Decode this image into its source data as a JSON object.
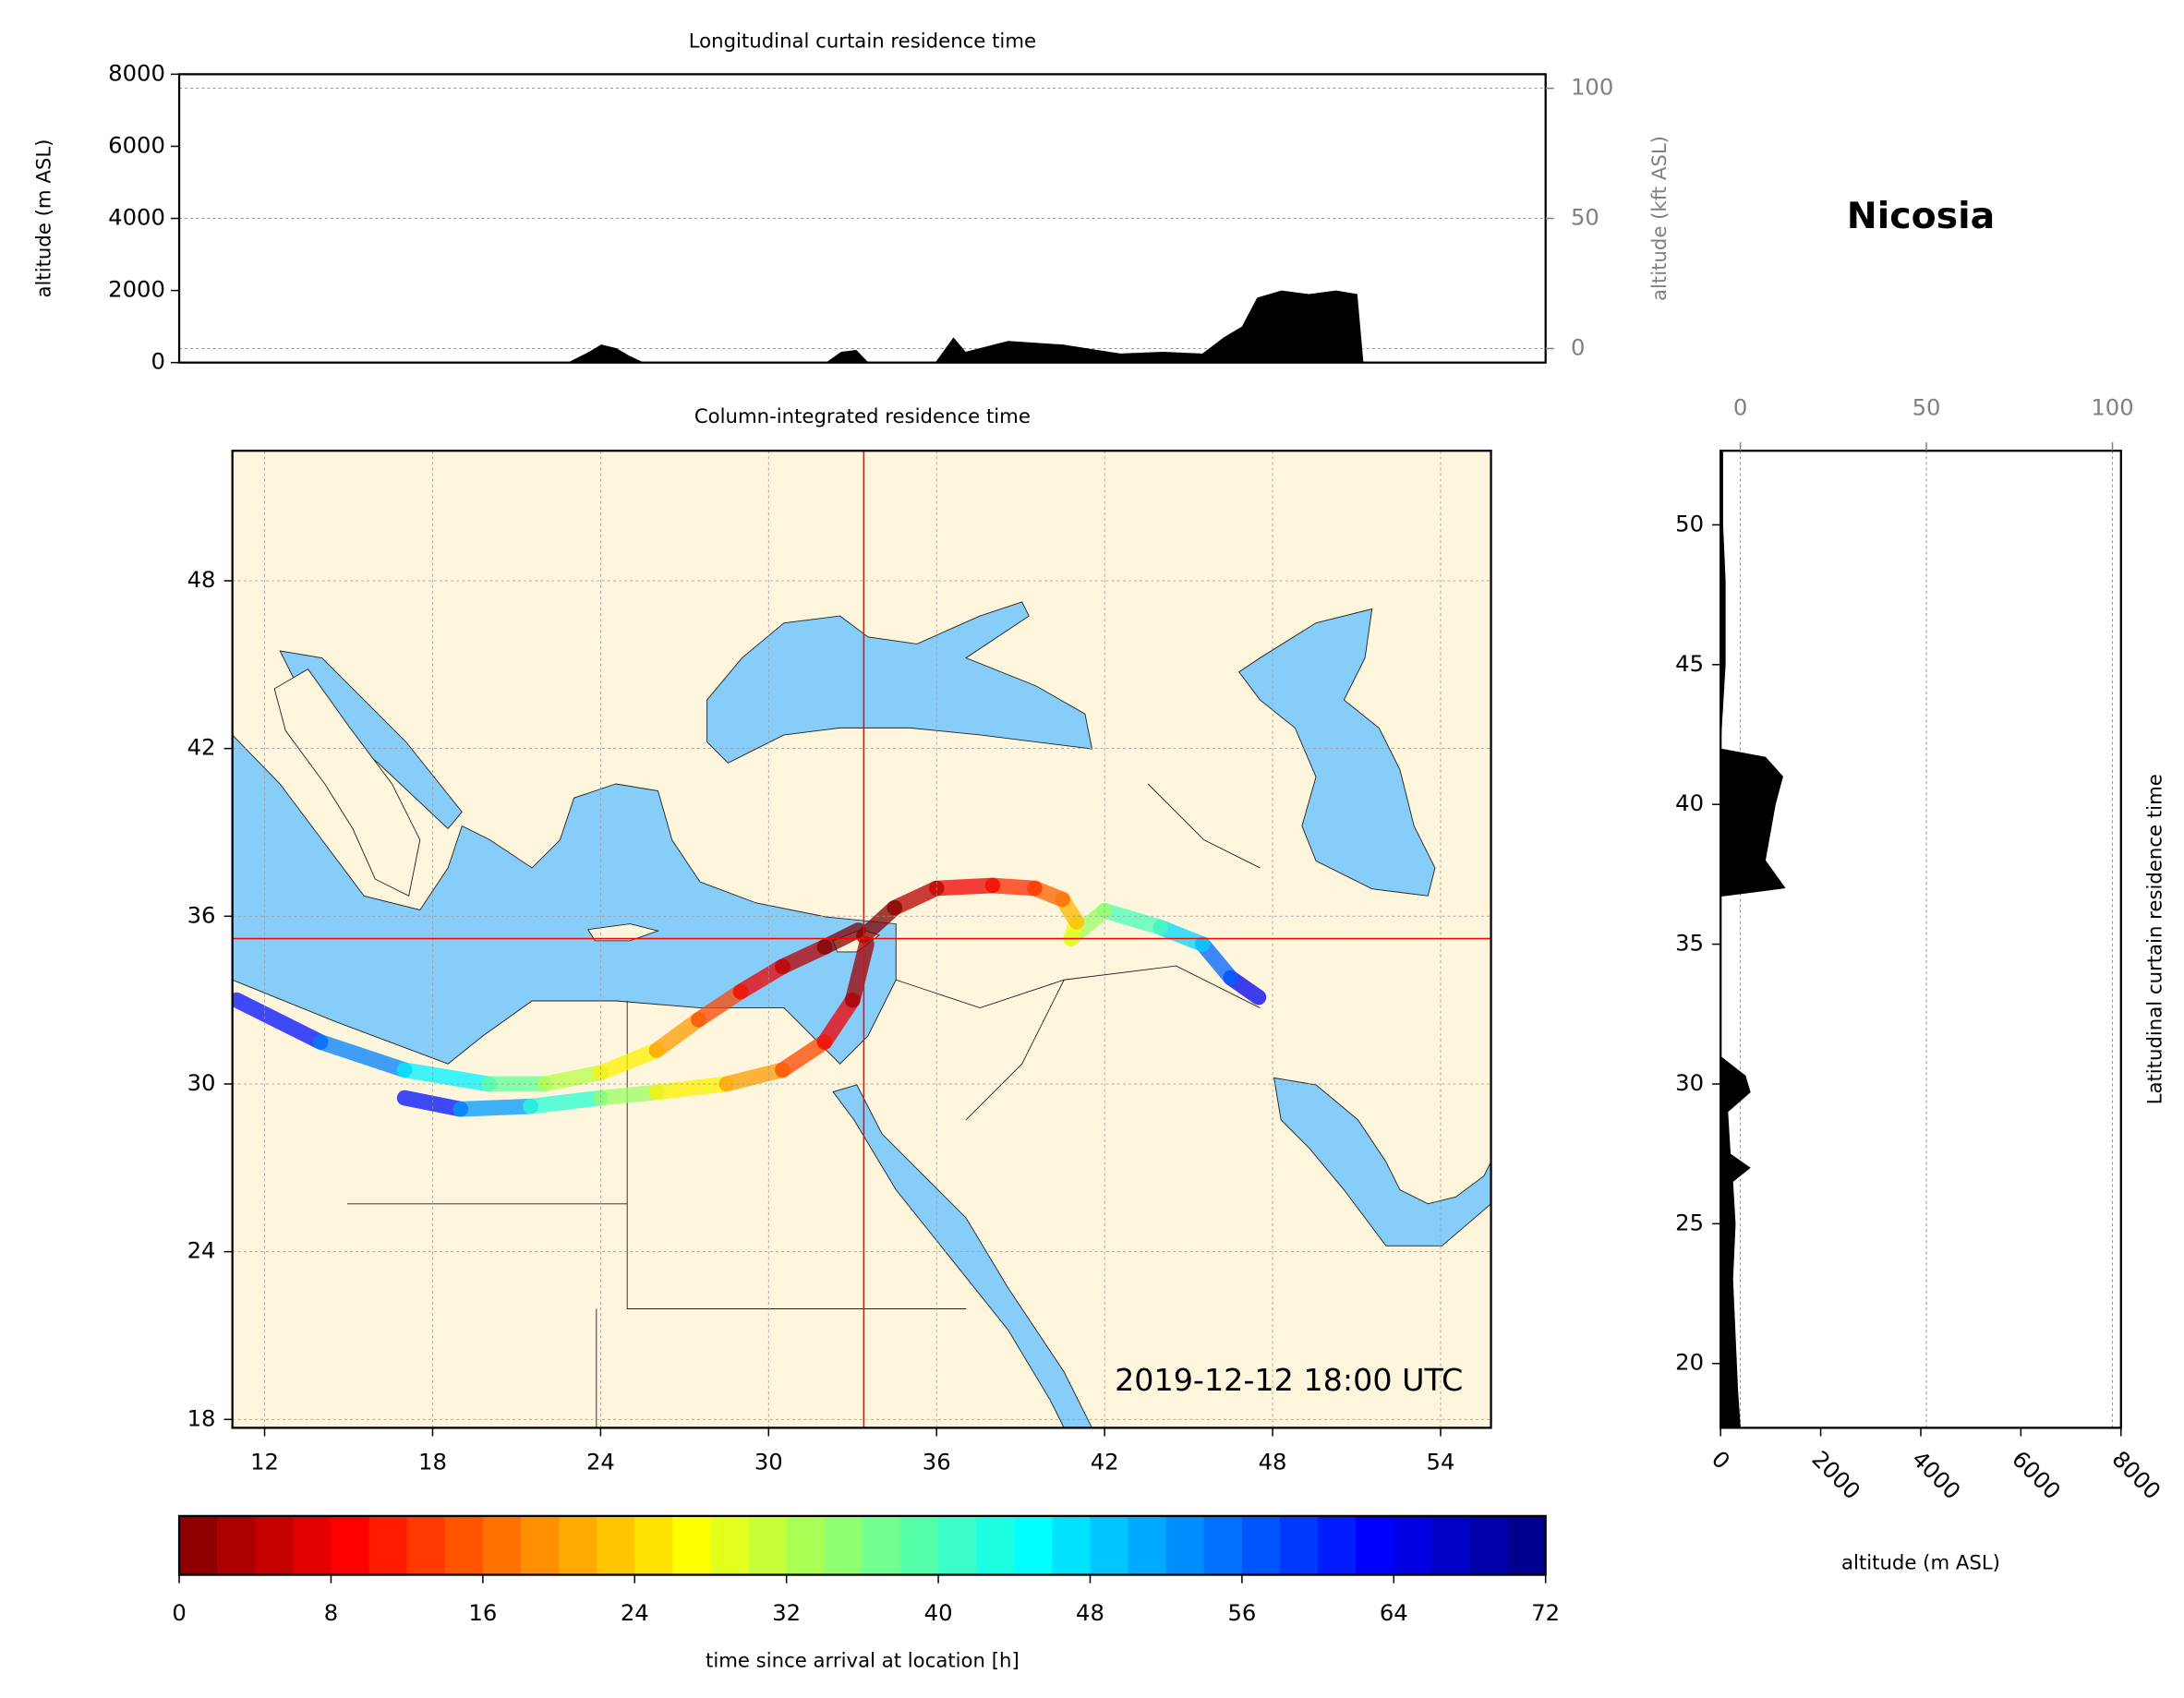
{
  "chart_data": [
    {
      "type": "area",
      "title": "Longitudinal curtain residence time",
      "ylabel": "altitude (m ASL)",
      "y2label": "altitude (kft ASL)",
      "xlim": [
        10.5,
        55.5
      ],
      "ylim": [
        0,
        8000
      ],
      "yticks": [
        0,
        2000,
        4000,
        6000,
        8000
      ],
      "y2lim": [
        -5.4,
        105.4
      ],
      "y2ticks": [
        0,
        50,
        100
      ],
      "y2color": "#808080",
      "grid": true,
      "color": "#000000",
      "x": [
        10.5,
        23.3,
        24.0,
        24.4,
        24.9,
        25.3,
        25.8,
        31.8,
        32.3,
        32.8,
        33.2,
        35.4,
        36.0,
        36.4,
        37.8,
        39.6,
        41.5,
        42.9,
        44.2,
        44.9,
        45.5,
        46.0,
        46.8,
        47.7,
        48.6,
        49.3,
        49.5
      ],
      "values": [
        0,
        0,
        300,
        500,
        400,
        200,
        0,
        0,
        300,
        350,
        0,
        0,
        700,
        300,
        600,
        500,
        250,
        300,
        250,
        700,
        1000,
        1800,
        2000,
        1900,
        2000,
        1900,
        0
      ]
    },
    {
      "type": "map",
      "title": "Column-integrated residence time",
      "annotation": "2019-12-12 18:00 UTC",
      "xlim": [
        10.85,
        55.8
      ],
      "ylim": [
        17.7,
        52.65
      ],
      "xticks": [
        12,
        18,
        24,
        30,
        36,
        42,
        48,
        54
      ],
      "yticks": [
        18,
        24,
        30,
        36,
        42,
        48
      ],
      "grid": true,
      "marker": {
        "lon": 33.4,
        "lat": 35.2
      },
      "marker_color": "#ff0000",
      "colormap": "jet_r",
      "trajectories": [
        {
          "lon": [
            33.4,
            34.5,
            36,
            38,
            39.5,
            40.5,
            41,
            40.8,
            42,
            44,
            45.5,
            46.5,
            47.5
          ],
          "lat": [
            35.3,
            36.3,
            37,
            37.1,
            37,
            36.6,
            35.8,
            35.2,
            36.2,
            35.6,
            35,
            33.8,
            33.1
          ],
          "time": [
            0,
            4,
            8,
            12,
            16,
            22,
            28,
            34,
            40,
            48,
            56,
            64,
            72
          ]
        },
        {
          "lon": [
            33.2,
            32,
            30.5,
            29,
            27.5,
            26,
            24,
            22,
            20,
            17,
            14,
            11
          ],
          "lat": [
            35.5,
            34.9,
            34.2,
            33.3,
            32.3,
            31.2,
            30.4,
            30,
            30,
            30.5,
            31.5,
            33
          ],
          "time": [
            0,
            4,
            8,
            14,
            20,
            26,
            32,
            38,
            46,
            54,
            62,
            70
          ]
        },
        {
          "lon": [
            33.5,
            33,
            32,
            30.5,
            28.5,
            26,
            24,
            21.5,
            19,
            17
          ],
          "lat": [
            35,
            33,
            31.5,
            30.5,
            30,
            29.7,
            29.5,
            29.2,
            29.1,
            29.5
          ],
          "time": [
            2,
            8,
            14,
            20,
            26,
            34,
            42,
            52,
            62,
            70
          ]
        }
      ]
    },
    {
      "type": "colorbar",
      "label": "time since arrival at location [h]",
      "clim": [
        0,
        72
      ],
      "ticks": [
        0,
        8,
        16,
        24,
        32,
        40,
        48,
        56,
        64,
        72
      ],
      "colormap": "jet_r"
    },
    {
      "type": "profile",
      "title": "Nicosia",
      "ylabel": "Latitudinal curtain residence time",
      "xlabel": "altitude (m ASL)",
      "xlim": [
        0,
        8000
      ],
      "xticks": [
        0,
        2000,
        4000,
        6000,
        8000
      ],
      "x2lim": [
        -5.3,
        102.3
      ],
      "x2ticks": [
        0,
        50,
        100
      ],
      "x2color": "#808080",
      "ylim": [
        17.7,
        52.65
      ],
      "yticks": [
        20,
        25,
        30,
        35,
        40,
        45,
        50
      ],
      "grid": true,
      "color": "#000000",
      "y": [
        17.7,
        19,
        21,
        23,
        25,
        26.5,
        27,
        27.5,
        29,
        29.7,
        30.3,
        31,
        35.5,
        36.7,
        37,
        38,
        39,
        40,
        41,
        41.7,
        42,
        45,
        48,
        50,
        52.65
      ],
      "values": [
        400,
        350,
        300,
        250,
        300,
        250,
        600,
        200,
        150,
        600,
        500,
        0,
        0,
        0,
        1300,
        900,
        1000,
        1100,
        1250,
        900,
        0,
        100,
        100,
        50,
        50
      ]
    }
  ]
}
